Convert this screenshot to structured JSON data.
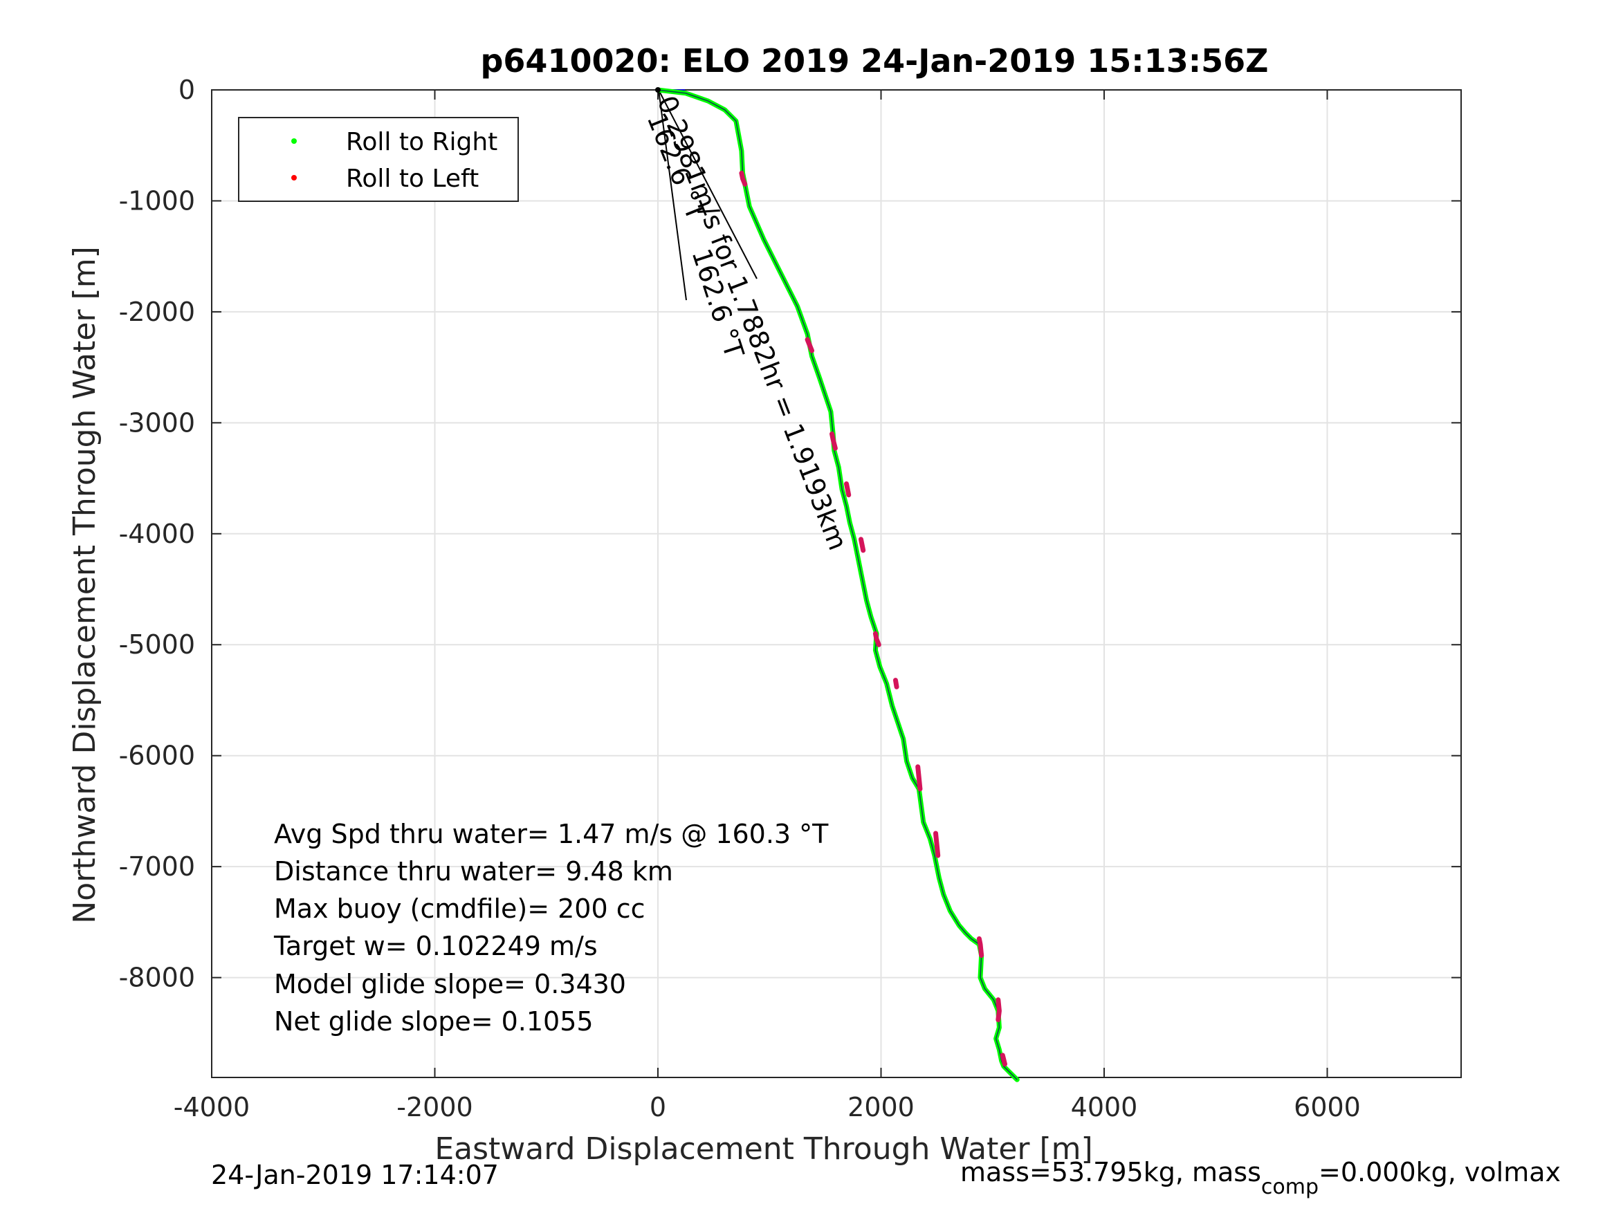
{
  "chart_data": {
    "type": "line",
    "title": "p6410020: ELO 2019 24-Jan-2019 15:13:56Z",
    "xlabel": "Eastward Displacement Through Water [m]",
    "ylabel": "Northward Displacement Through Water [m]",
    "xlim": [
      -4000,
      7200
    ],
    "ylim": [
      -8900,
      0
    ],
    "xticks": [
      -4000,
      -2000,
      0,
      2000,
      4000,
      6000
    ],
    "yticks": [
      0,
      -1000,
      -2000,
      -3000,
      -4000,
      -5000,
      -6000,
      -7000,
      -8000
    ],
    "xtick_labels": [
      "-4000",
      "-2000",
      "0",
      "2000",
      "4000",
      "6000"
    ],
    "ytick_labels": [
      "0",
      "-1000",
      "-2000",
      "-3000",
      "-4000",
      "-5000",
      "-6000",
      "-7000",
      "-8000"
    ],
    "grid": true,
    "legend": {
      "placement": "top-left",
      "entries": [
        {
          "label": "Roll to Right",
          "color": "#00ff00"
        },
        {
          "label": "Roll to Left",
          "color": "#ff0000"
        }
      ]
    },
    "series": [
      {
        "name": "Roll to Right",
        "color": "#00ff00",
        "x": [
          0,
          250,
          450,
          600,
          700,
          750,
          760,
          780,
          820,
          950,
          1100,
          1250,
          1340,
          1380,
          1450,
          1550,
          1570,
          1580,
          1620,
          1650,
          1690,
          1720,
          1760,
          1800,
          1840,
          1870,
          1910,
          1960,
          1950,
          1990,
          2050,
          2100,
          2150,
          2200,
          2230,
          2280,
          2340,
          2360,
          2380,
          2440,
          2480,
          2500,
          2520,
          2560,
          2620,
          2700,
          2760,
          2810,
          2880,
          2900,
          2890,
          2930,
          3010,
          3050,
          3060,
          3030,
          3060,
          3080,
          3100,
          3150,
          3220
        ],
        "y": [
          0,
          -30,
          -100,
          -180,
          -280,
          -550,
          -750,
          -850,
          -1050,
          -1350,
          -1650,
          -1950,
          -2200,
          -2400,
          -2600,
          -2900,
          -3100,
          -3250,
          -3400,
          -3600,
          -3750,
          -3900,
          -4050,
          -4250,
          -4450,
          -4600,
          -4750,
          -4900,
          -5050,
          -5200,
          -5350,
          -5550,
          -5700,
          -5850,
          -6050,
          -6200,
          -6300,
          -6450,
          -6600,
          -6750,
          -6900,
          -7000,
          -7100,
          -7250,
          -7400,
          -7530,
          -7600,
          -7650,
          -7700,
          -7800,
          -8000,
          -8100,
          -8200,
          -8300,
          -8450,
          -8550,
          -8650,
          -8750,
          -8800,
          -8850,
          -8920
        ]
      },
      {
        "name": "Roll to Left",
        "color": "#ff0000",
        "segments": [
          {
            "x": [
              750,
              760,
              780
            ],
            "y": [
              -750,
              -800,
              -850
            ]
          },
          {
            "x": [
              1340,
              1360,
              1380
            ],
            "y": [
              -2250,
              -2300,
              -2350
            ]
          },
          {
            "x": [
              1560,
              1570,
              1590
            ],
            "y": [
              -3100,
              -3150,
              -3230
            ]
          },
          {
            "x": [
              1690,
              1700,
              1710
            ],
            "y": [
              -3550,
              -3600,
              -3650
            ]
          },
          {
            "x": [
              1820,
              1830,
              1840
            ],
            "y": [
              -4050,
              -4100,
              -4150
            ]
          },
          {
            "x": [
              1950,
              1960,
              1980
            ],
            "y": [
              -4900,
              -4950,
              -5000
            ]
          },
          {
            "x": [
              2130,
              2140
            ],
            "y": [
              -5320,
              -5380
            ]
          },
          {
            "x": [
              2330,
              2340,
              2350
            ],
            "y": [
              -6100,
              -6200,
              -6300
            ]
          },
          {
            "x": [
              2490,
              2500,
              2510
            ],
            "y": [
              -6700,
              -6800,
              -6900
            ]
          },
          {
            "x": [
              2880,
              2890,
              2900
            ],
            "y": [
              -7650,
              -7700,
              -7800
            ]
          },
          {
            "x": [
              3050,
              3060,
              3050
            ],
            "y": [
              -8200,
              -8300,
              -8380
            ]
          },
          {
            "x": [
              3090,
              3110
            ],
            "y": [
              -8700,
              -8780
            ]
          }
        ]
      }
    ],
    "annotations": [
      {
        "text": "162.6 °T",
        "rotation_deg": 68
      },
      {
        "text": "0.2981m/s for 1.7882hr = 1.9193km",
        "rotation_deg": 69
      },
      {
        "text": "162.6 °T",
        "rotation_deg": 72
      }
    ],
    "stats": [
      "Avg Spd thru water=  1.47 m/s @ 160.3 °T",
      "Distance thru water=  9.48 km",
      "Max buoy (cmdfile)= 200 cc",
      "Target w= 0.102249 m/s",
      "Model glide slope= 0.3430",
      "Net glide slope= 0.1055"
    ],
    "footer_left": "24-Jan-2019 17:14:07",
    "footer_right_a": "mass=53.795kg, mass",
    "footer_right_sub": "comp",
    "footer_right_b": "=0.000kg, volmax"
  }
}
